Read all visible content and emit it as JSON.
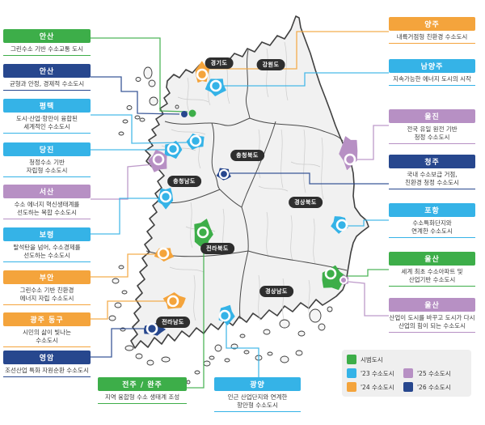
{
  "palette": {
    "green": "#3dae49",
    "blue": "#35b3e7",
    "orange": "#f4a43c",
    "purple": "#b790c4",
    "navy": "#27478e"
  },
  "legend": {
    "items": [
      {
        "color": "green",
        "label": "시범도시"
      },
      {
        "color": "blue",
        "label": "'23 수소도시"
      },
      {
        "color": "orange",
        "label": "'24 수소도시"
      },
      {
        "color": "purple",
        "label": "'25 수소도시"
      },
      {
        "color": "navy",
        "label": "'26 수소도시"
      }
    ]
  },
  "map": {
    "provinces": [
      {
        "id": "gyeonggi",
        "label": "경기도"
      },
      {
        "id": "gangwon",
        "label": "강원도"
      },
      {
        "id": "chungbuk",
        "label": "충청북도"
      },
      {
        "id": "chungnam",
        "label": "충청남도"
      },
      {
        "id": "gyeongbuk",
        "label": "경상북도"
      },
      {
        "id": "jeonbuk",
        "label": "전라북도"
      },
      {
        "id": "gyeongnam",
        "label": "경상남도"
      },
      {
        "id": "jeonnam",
        "label": "전라남도"
      }
    ]
  },
  "callouts": {
    "left": [
      {
        "id": "ansan-green",
        "city": "안산",
        "color": "green",
        "desc": [
          "그린수소 기반 수소교통 도시"
        ]
      },
      {
        "id": "ansan-navy",
        "city": "안산",
        "color": "navy",
        "desc": [
          "균형과 안정, 경제적 수소도시"
        ]
      },
      {
        "id": "pyeongtaek",
        "city": "평택",
        "color": "blue",
        "desc": [
          "도시·산업·항만이 융합된",
          "세계적인 수소도시"
        ]
      },
      {
        "id": "dangjin",
        "city": "당진",
        "color": "blue",
        "desc": [
          "청정수소 기반",
          "자립형 수소도시"
        ]
      },
      {
        "id": "seosan",
        "city": "서산",
        "color": "purple",
        "desc": [
          "수소 에너지 혁신생태계를",
          "선도하는 복합 수소도시"
        ]
      },
      {
        "id": "boryeong",
        "city": "보령",
        "color": "blue",
        "desc": [
          "탈석탄을 넘어, 수소경제를",
          "선도하는 수소도시"
        ]
      },
      {
        "id": "buan",
        "city": "부안",
        "color": "orange",
        "desc": [
          "그린수소 기반 친환경",
          "에너지 자립 수소도시"
        ]
      },
      {
        "id": "gwangju-donggu",
        "city": "광주 동구",
        "color": "orange",
        "desc": [
          "시민의 삶이 빛나는",
          "수소도시"
        ]
      },
      {
        "id": "yeongam",
        "city": "영암",
        "color": "navy",
        "desc": [
          "조선산업 특화 자원순환 수소도시"
        ]
      }
    ],
    "bottom": [
      {
        "id": "jeonju-wanju",
        "city": "전주 / 완주",
        "color": "green",
        "desc": [
          "지역 융합형 수소 생태계 조성"
        ]
      },
      {
        "id": "gwangyang",
        "city": "광양",
        "color": "blue",
        "desc": [
          "인근 산업단지와 연계한",
          "항만형 수소도시"
        ]
      }
    ],
    "right": [
      {
        "id": "yangju",
        "city": "양주",
        "color": "orange",
        "desc": [
          "내륙거점형 친환경 수소도시"
        ]
      },
      {
        "id": "namyangju",
        "city": "남양주",
        "color": "blue",
        "desc": [
          "지속가능한 에너지 도시의 시작"
        ]
      },
      {
        "id": "uljin",
        "city": "울진",
        "color": "purple",
        "desc": [
          "전국 유일 원전 기반",
          "청정 수소도시"
        ]
      },
      {
        "id": "cheongju",
        "city": "청주",
        "color": "navy",
        "desc": [
          "국내 수소보급 거점,",
          "친환경 청정 수소도시"
        ]
      },
      {
        "id": "pohang",
        "city": "포항",
        "color": "blue",
        "desc": [
          "수소특화단지와",
          "연계한 수소도시"
        ]
      },
      {
        "id": "ulsan-green",
        "city": "울산",
        "color": "green",
        "desc": [
          "세계 최초 수소아파트 및",
          "산업기반 수소도시"
        ]
      },
      {
        "id": "ulsan-purple",
        "city": "울산",
        "color": "purple",
        "desc": [
          "산업이 도시를 바꾸고 도시가 다시",
          "산업의 힘이 되는 수소도시"
        ]
      }
    ]
  }
}
